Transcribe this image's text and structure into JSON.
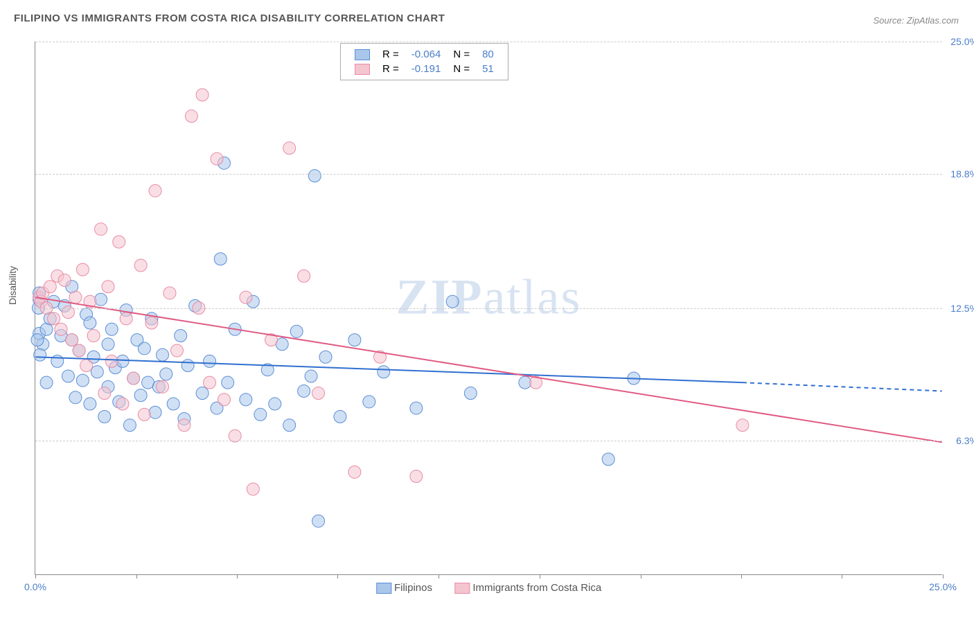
{
  "title": "FILIPINO VS IMMIGRANTS FROM COSTA RICA DISABILITY CORRELATION CHART",
  "source": "Source: ZipAtlas.com",
  "ylabel": "Disability",
  "watermark_zip": "ZIP",
  "watermark_atlas": "atlas",
  "chart": {
    "type": "scatter",
    "background_color": "#ffffff",
    "grid_color": "#cccccc",
    "axis_color": "#888888",
    "xlim": [
      0,
      25
    ],
    "ylim": [
      0,
      25
    ],
    "xticks": [
      0,
      2.78,
      5.56,
      8.33,
      11.11,
      13.89,
      16.67,
      19.44,
      22.22,
      25
    ],
    "xtick_labels": {
      "0": "0.0%",
      "25": "25.0%"
    },
    "yticks": [
      6.3,
      12.5,
      18.8,
      25.0
    ],
    "ytick_labels": [
      "6.3%",
      "12.5%",
      "18.8%",
      "25.0%"
    ],
    "marker_radius": 9,
    "marker_opacity": 0.55,
    "line_width": 2
  },
  "series": [
    {
      "id": "filipinos",
      "label": "Filipinos",
      "color_fill": "#a9c6eb",
      "color_stroke": "#5b8dd6",
      "R": "-0.064",
      "N": "80",
      "trend": {
        "x1": 0,
        "y1": 10.2,
        "x2": 19.5,
        "y2": 9.0,
        "dash_x2": 25,
        "dash_y2": 8.6,
        "color": "#2f6fd0"
      },
      "points": [
        [
          0.1,
          11.3
        ],
        [
          0.1,
          12.9
        ],
        [
          0.1,
          13.2
        ],
        [
          0.2,
          10.8
        ],
        [
          0.3,
          11.5
        ],
        [
          0.3,
          9.0
        ],
        [
          0.4,
          12.0
        ],
        [
          0.5,
          12.8
        ],
        [
          0.6,
          10.0
        ],
        [
          0.7,
          11.2
        ],
        [
          0.8,
          12.6
        ],
        [
          0.9,
          9.3
        ],
        [
          1.0,
          11.0
        ],
        [
          1.0,
          13.5
        ],
        [
          1.1,
          8.3
        ],
        [
          1.2,
          10.5
        ],
        [
          1.3,
          9.1
        ],
        [
          1.4,
          12.2
        ],
        [
          1.5,
          8.0
        ],
        [
          1.5,
          11.8
        ],
        [
          1.6,
          10.2
        ],
        [
          1.7,
          9.5
        ],
        [
          1.8,
          12.9
        ],
        [
          1.9,
          7.4
        ],
        [
          2.0,
          10.8
        ],
        [
          2.0,
          8.8
        ],
        [
          2.1,
          11.5
        ],
        [
          2.2,
          9.7
        ],
        [
          2.3,
          8.1
        ],
        [
          2.4,
          10.0
        ],
        [
          2.5,
          12.4
        ],
        [
          2.6,
          7.0
        ],
        [
          2.7,
          9.2
        ],
        [
          2.8,
          11.0
        ],
        [
          2.9,
          8.4
        ],
        [
          3.0,
          10.6
        ],
        [
          3.1,
          9.0
        ],
        [
          3.2,
          12.0
        ],
        [
          3.3,
          7.6
        ],
        [
          3.4,
          8.8
        ],
        [
          3.5,
          10.3
        ],
        [
          3.6,
          9.4
        ],
        [
          3.8,
          8.0
        ],
        [
          4.0,
          11.2
        ],
        [
          4.1,
          7.3
        ],
        [
          4.2,
          9.8
        ],
        [
          4.4,
          12.6
        ],
        [
          4.6,
          8.5
        ],
        [
          4.8,
          10.0
        ],
        [
          5.0,
          7.8
        ],
        [
          5.1,
          14.8
        ],
        [
          5.2,
          19.3
        ],
        [
          5.3,
          9.0
        ],
        [
          5.5,
          11.5
        ],
        [
          5.8,
          8.2
        ],
        [
          6.0,
          12.8
        ],
        [
          6.2,
          7.5
        ],
        [
          6.4,
          9.6
        ],
        [
          6.6,
          8.0
        ],
        [
          6.8,
          10.8
        ],
        [
          7.0,
          7.0
        ],
        [
          7.2,
          11.4
        ],
        [
          7.4,
          8.6
        ],
        [
          7.6,
          9.3
        ],
        [
          7.7,
          18.7
        ],
        [
          7.8,
          2.5
        ],
        [
          8.0,
          10.2
        ],
        [
          8.4,
          7.4
        ],
        [
          8.8,
          11.0
        ],
        [
          9.2,
          8.1
        ],
        [
          9.6,
          9.5
        ],
        [
          10.5,
          7.8
        ],
        [
          11.5,
          12.8
        ],
        [
          12.0,
          8.5
        ],
        [
          13.5,
          9.0
        ],
        [
          15.8,
          5.4
        ],
        [
          16.5,
          9.2
        ],
        [
          0.05,
          11.0
        ],
        [
          0.08,
          12.5
        ],
        [
          0.12,
          10.3
        ]
      ]
    },
    {
      "id": "costa_rica",
      "label": "Immigrants from Costa Rica",
      "color_fill": "#f4c4cf",
      "color_stroke": "#e88ba3",
      "R": "-0.191",
      "N": "51",
      "trend": {
        "x1": 0,
        "y1": 13.0,
        "x2": 25,
        "y2": 6.2,
        "color": "#e05a82"
      },
      "points": [
        [
          0.1,
          13.0
        ],
        [
          0.15,
          12.8
        ],
        [
          0.2,
          13.2
        ],
        [
          0.3,
          12.5
        ],
        [
          0.4,
          13.5
        ],
        [
          0.5,
          12.0
        ],
        [
          0.6,
          14.0
        ],
        [
          0.7,
          11.5
        ],
        [
          0.8,
          13.8
        ],
        [
          0.9,
          12.3
        ],
        [
          1.0,
          11.0
        ],
        [
          1.1,
          13.0
        ],
        [
          1.2,
          10.5
        ],
        [
          1.3,
          14.3
        ],
        [
          1.4,
          9.8
        ],
        [
          1.5,
          12.8
        ],
        [
          1.6,
          11.2
        ],
        [
          1.8,
          16.2
        ],
        [
          1.9,
          8.5
        ],
        [
          2.0,
          13.5
        ],
        [
          2.1,
          10.0
        ],
        [
          2.3,
          15.6
        ],
        [
          2.4,
          8.0
        ],
        [
          2.5,
          12.0
        ],
        [
          2.7,
          9.2
        ],
        [
          2.9,
          14.5
        ],
        [
          3.0,
          7.5
        ],
        [
          3.2,
          11.8
        ],
        [
          3.3,
          18.0
        ],
        [
          3.5,
          8.8
        ],
        [
          3.7,
          13.2
        ],
        [
          3.9,
          10.5
        ],
        [
          4.1,
          7.0
        ],
        [
          4.3,
          21.5
        ],
        [
          4.5,
          12.5
        ],
        [
          4.6,
          22.5
        ],
        [
          4.8,
          9.0
        ],
        [
          5.0,
          19.5
        ],
        [
          5.2,
          8.2
        ],
        [
          5.5,
          6.5
        ],
        [
          5.8,
          13.0
        ],
        [
          6.0,
          4.0
        ],
        [
          6.5,
          11.0
        ],
        [
          7.0,
          20.0
        ],
        [
          7.4,
          14.0
        ],
        [
          7.8,
          8.5
        ],
        [
          8.8,
          4.8
        ],
        [
          9.5,
          10.2
        ],
        [
          10.5,
          4.6
        ],
        [
          13.8,
          9.0
        ],
        [
          19.5,
          7.0
        ]
      ]
    }
  ],
  "legend_top": {
    "R_label": "R =",
    "N_label": "N ="
  }
}
